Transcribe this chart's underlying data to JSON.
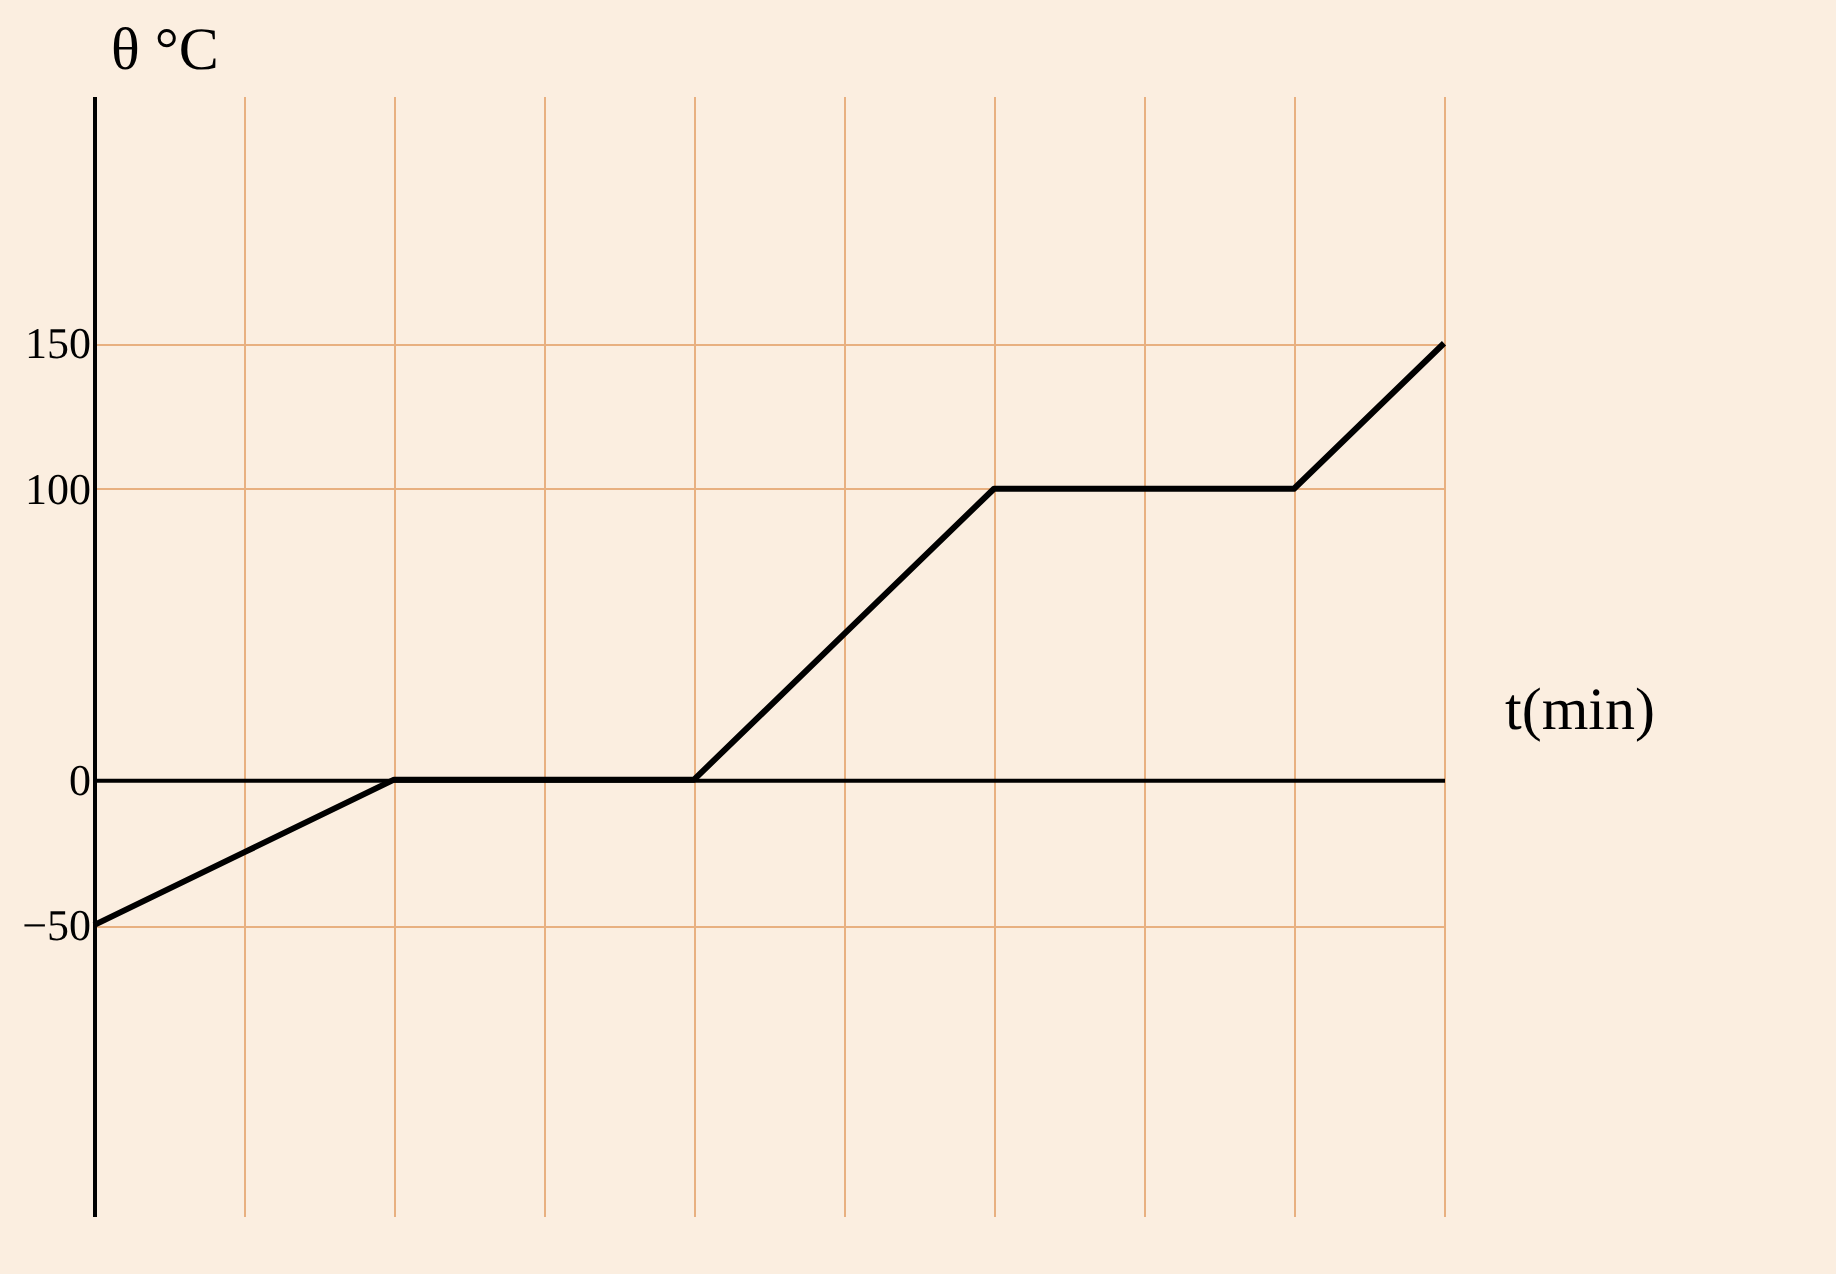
{
  "chart_data": {
    "type": "line",
    "xlabel": "t(min)",
    "ylabel": "θ °C",
    "categories": [
      null,
      null,
      null,
      null,
      null,
      null,
      null,
      null,
      null,
      null
    ],
    "series": [
      {
        "color": "#000000",
        "values": [
          -50,
          -25,
          0,
          0,
          0,
          50,
          100,
          100,
          100,
          150
        ]
      }
    ],
    "ylim": [
      -150,
      235
    ],
    "yticks": [
      -50,
      0,
      100,
      150
    ],
    "tick_labels": "y",
    "grid": true,
    "marker": "none",
    "line_style": "solid",
    "legend": false
  }
}
